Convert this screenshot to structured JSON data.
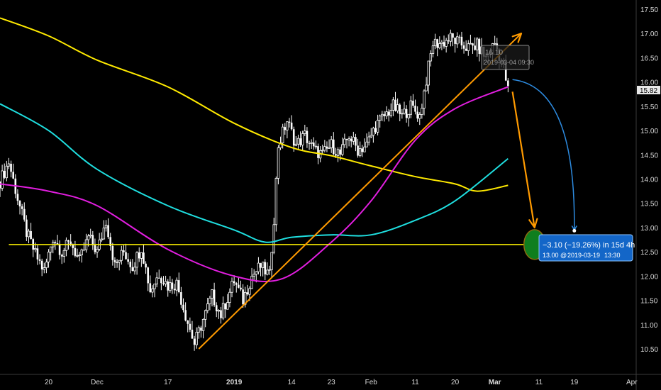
{
  "chart_data": {
    "type": "candlestick",
    "title": "",
    "y_axis": {
      "range": [
        10.2,
        17.7
      ],
      "ticks": [
        "17.50",
        "17.00",
        "16.50",
        "16.00",
        "15.50",
        "15.00",
        "14.50",
        "14.00",
        "13.50",
        "13.00",
        "12.50",
        "12.00",
        "11.50",
        "11.00",
        "10.50"
      ],
      "last_price_label": "15.82",
      "last_price": 15.82
    },
    "x_axis": {
      "range": [
        "2018-11-09",
        "2019-04-02"
      ],
      "ticks": [
        {
          "label": "20",
          "date": "2018-11-20"
        },
        {
          "label": "Dec",
          "date": "2018-12-01"
        },
        {
          "label": "17",
          "date": "2018-12-17"
        },
        {
          "label": "2019",
          "date": "2019-01-01"
        },
        {
          "label": "14",
          "date": "2019-01-14"
        },
        {
          "label": "23",
          "date": "2019-01-23"
        },
        {
          "label": "Feb",
          "date": "2019-02-01"
        },
        {
          "label": "11",
          "date": "2019-02-11"
        },
        {
          "label": "20",
          "date": "2019-02-20"
        },
        {
          "label": "Mar",
          "date": "2019-03-01"
        },
        {
          "label": "11",
          "date": "2019-03-11"
        },
        {
          "label": "19",
          "date": "2019-03-19"
        },
        {
          "label": "Apr",
          "date": "2019-04-01"
        }
      ]
    },
    "price_trace": [
      {
        "x": "2018-11-09",
        "y": 13.95
      },
      {
        "x": "2018-11-11",
        "y": 14.35
      },
      {
        "x": "2018-11-13",
        "y": 13.6
      },
      {
        "x": "2018-11-15",
        "y": 12.9
      },
      {
        "x": "2018-11-17",
        "y": 12.45
      },
      {
        "x": "2018-11-19",
        "y": 12.1
      },
      {
        "x": "2018-11-21",
        "y": 12.8
      },
      {
        "x": "2018-11-23",
        "y": 12.5
      },
      {
        "x": "2018-11-25",
        "y": 12.7
      },
      {
        "x": "2018-11-27",
        "y": 12.3
      },
      {
        "x": "2018-11-29",
        "y": 12.8
      },
      {
        "x": "2018-12-01",
        "y": 12.5
      },
      {
        "x": "2018-12-03",
        "y": 13.15
      },
      {
        "x": "2018-12-05",
        "y": 12.2
      },
      {
        "x": "2018-12-07",
        "y": 12.5
      },
      {
        "x": "2018-12-09",
        "y": 12.2
      },
      {
        "x": "2018-12-11",
        "y": 12.6
      },
      {
        "x": "2018-12-13",
        "y": 11.7
      },
      {
        "x": "2018-12-15",
        "y": 12.05
      },
      {
        "x": "2018-12-17",
        "y": 11.8
      },
      {
        "x": "2018-12-19",
        "y": 11.85
      },
      {
        "x": "2018-12-21",
        "y": 11.2
      },
      {
        "x": "2018-12-23",
        "y": 10.6
      },
      {
        "x": "2018-12-25",
        "y": 11.1
      },
      {
        "x": "2018-12-27",
        "y": 11.6
      },
      {
        "x": "2018-12-29",
        "y": 11.2
      },
      {
        "x": "2019-01-01",
        "y": 11.9
      },
      {
        "x": "2019-01-03",
        "y": 11.5
      },
      {
        "x": "2019-01-05",
        "y": 12.0
      },
      {
        "x": "2019-01-07",
        "y": 12.2
      },
      {
        "x": "2019-01-09",
        "y": 12.0
      },
      {
        "x": "2019-01-10",
        "y": 13.2
      },
      {
        "x": "2019-01-11",
        "y": 14.7
      },
      {
        "x": "2019-01-13",
        "y": 15.2
      },
      {
        "x": "2019-01-15",
        "y": 14.7
      },
      {
        "x": "2019-01-17",
        "y": 14.9
      },
      {
        "x": "2019-01-19",
        "y": 14.6
      },
      {
        "x": "2019-01-21",
        "y": 14.5
      },
      {
        "x": "2019-01-23",
        "y": 14.7
      },
      {
        "x": "2019-01-25",
        "y": 14.5
      },
      {
        "x": "2019-01-27",
        "y": 14.9
      },
      {
        "x": "2019-01-29",
        "y": 14.6
      },
      {
        "x": "2019-01-31",
        "y": 14.7
      },
      {
        "x": "2019-02-02",
        "y": 15.1
      },
      {
        "x": "2019-02-04",
        "y": 15.3
      },
      {
        "x": "2019-02-06",
        "y": 15.5
      },
      {
        "x": "2019-02-08",
        "y": 15.3
      },
      {
        "x": "2019-02-10",
        "y": 15.5
      },
      {
        "x": "2019-02-12",
        "y": 15.3
      },
      {
        "x": "2019-02-14",
        "y": 16.3
      },
      {
        "x": "2019-02-15",
        "y": 16.8
      },
      {
        "x": "2019-02-17",
        "y": 16.8
      },
      {
        "x": "2019-02-19",
        "y": 16.9
      },
      {
        "x": "2019-02-21",
        "y": 16.8
      },
      {
        "x": "2019-02-23",
        "y": 16.7
      },
      {
        "x": "2019-02-25",
        "y": 16.75
      },
      {
        "x": "2019-02-27",
        "y": 16.5
      },
      {
        "x": "2019-03-01",
        "y": 16.8
      },
      {
        "x": "2019-03-03",
        "y": 16.3
      },
      {
        "x": "2019-03-04",
        "y": 15.82
      }
    ],
    "ma_yellow": [
      {
        "x": "2018-11-09",
        "y": 17.32
      },
      {
        "x": "2018-11-20",
        "y": 16.95
      },
      {
        "x": "2018-12-01",
        "y": 16.45
      },
      {
        "x": "2018-12-17",
        "y": 15.9
      },
      {
        "x": "2019-01-01",
        "y": 15.15
      },
      {
        "x": "2019-01-14",
        "y": 14.65
      },
      {
        "x": "2019-01-23",
        "y": 14.48
      },
      {
        "x": "2019-02-01",
        "y": 14.27
      },
      {
        "x": "2019-02-11",
        "y": 14.05
      },
      {
        "x": "2019-02-20",
        "y": 13.9
      },
      {
        "x": "2019-02-25",
        "y": 13.75
      },
      {
        "x": "2019-03-04",
        "y": 13.87
      }
    ],
    "ma_cyan": [
      {
        "x": "2018-11-09",
        "y": 15.55
      },
      {
        "x": "2018-11-20",
        "y": 15.0
      },
      {
        "x": "2018-12-01",
        "y": 14.2
      },
      {
        "x": "2018-12-17",
        "y": 13.45
      },
      {
        "x": "2019-01-01",
        "y": 12.95
      },
      {
        "x": "2019-01-08",
        "y": 12.7
      },
      {
        "x": "2019-01-14",
        "y": 12.8
      },
      {
        "x": "2019-01-23",
        "y": 12.85
      },
      {
        "x": "2019-02-01",
        "y": 12.85
      },
      {
        "x": "2019-02-11",
        "y": 13.15
      },
      {
        "x": "2019-02-20",
        "y": 13.55
      },
      {
        "x": "2019-03-04",
        "y": 14.42
      }
    ],
    "ma_magenta": [
      {
        "x": "2018-11-09",
        "y": 13.9
      },
      {
        "x": "2018-11-20",
        "y": 13.75
      },
      {
        "x": "2018-12-01",
        "y": 13.45
      },
      {
        "x": "2018-12-17",
        "y": 12.55
      },
      {
        "x": "2019-01-01",
        "y": 12.0
      },
      {
        "x": "2019-01-12",
        "y": 11.95
      },
      {
        "x": "2019-01-23",
        "y": 12.7
      },
      {
        "x": "2019-02-01",
        "y": 13.55
      },
      {
        "x": "2019-02-11",
        "y": 14.8
      },
      {
        "x": "2019-02-20",
        "y": 15.45
      },
      {
        "x": "2019-03-04",
        "y": 15.9
      }
    ],
    "horizontal_line": {
      "y": 12.65,
      "from": "2018-11-11",
      "to": "2019-03-31"
    },
    "trendline": {
      "from": {
        "x": "2018-12-24",
        "y": 10.5
      },
      "to": {
        "x": "2019-03-07",
        "y": 17.0
      }
    },
    "forecast_arrow": {
      "from": {
        "x": "2019-03-05",
        "y": 15.8
      },
      "to": {
        "x": "2019-03-10",
        "y": 13.0
      }
    },
    "projection_curve": {
      "from": {
        "x": "2019-03-05",
        "y": 16.05
      },
      "to": {
        "x": "2019-03-19",
        "y": 12.95
      }
    },
    "target_ellipse": {
      "x": "2019-03-10",
      "y": 12.65
    },
    "tooltip_callout": {
      "text_1": "16.10",
      "text_2": "2019-03-04 09:30",
      "at": {
        "x": "2019-03-04",
        "y": 16.1
      }
    },
    "measure_label": {
      "line1": "−3.10 (−19.26%) in 15d 4h",
      "line2_value": "13.00",
      "line2_date": "2019-03-19",
      "line2_time": "13:30",
      "at": {
        "x": "2019-03-19",
        "y": 12.85
      }
    },
    "colors": {
      "background": "#000000",
      "candles": "#ffffff",
      "ma_yellow": "#ffea00",
      "ma_cyan": "#1fdfe0",
      "ma_magenta": "#e21ee0",
      "horizontal": "#fff300",
      "trendline": "#ff9a00",
      "projection": "#2d8be0",
      "ellipse_fill": "#0f7e1e",
      "ellipse_stroke": "#8a6a10",
      "label_bg": "#1366c8"
    }
  }
}
